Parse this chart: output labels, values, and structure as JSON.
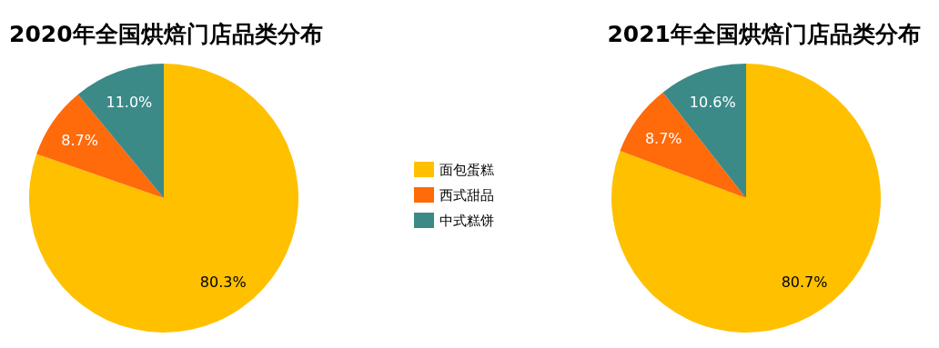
{
  "chart_data": [
    {
      "type": "pie",
      "title": "2020年全国烘焙门店品类分布",
      "categories": [
        "面包蛋糕",
        "西式甜品",
        "中式糕饼"
      ],
      "values": [
        80.3,
        8.7,
        11.0
      ],
      "colors": [
        "#ffc000",
        "#ff6a0a",
        "#3b8a88"
      ],
      "value_labels": [
        "80.3%",
        "8.7%",
        "11.0%"
      ],
      "legend": "right"
    },
    {
      "type": "pie",
      "title": "2021年全国烘焙门店品类分布",
      "categories": [
        null,
        null,
        null
      ],
      "values": [
        80.7,
        8.7,
        10.6
      ],
      "colors": [
        "#ffc000",
        "#ff6a0a",
        "#3b8a88"
      ],
      "value_labels": [
        "80.7%",
        "8.7%",
        "10.6%"
      ]
    }
  ]
}
